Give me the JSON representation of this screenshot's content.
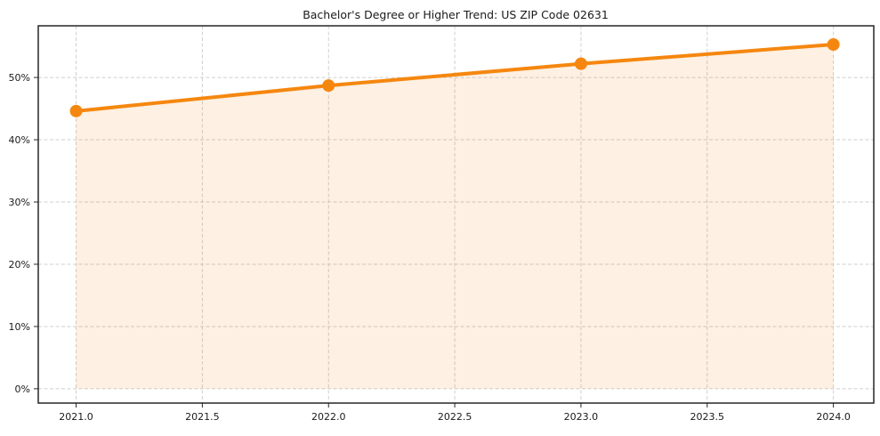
{
  "page": {
    "background": "#ffffff"
  },
  "chart_data": {
    "type": "line",
    "title": "Bachelor's Degree or Higher Trend: US ZIP Code 02631",
    "x": [
      2021.0,
      2022.0,
      2023.0,
      2024.0
    ],
    "values": [
      44.6,
      48.7,
      52.2,
      55.3
    ],
    "unit": "%",
    "xlabel": "",
    "ylabel": "",
    "xlim": [
      2020.85,
      2024.16
    ],
    "ylim": [
      -2.3,
      58.3
    ],
    "xticks": {
      "values": [
        2021.0,
        2021.5,
        2022.0,
        2022.5,
        2023.0,
        2023.5,
        2024.0
      ],
      "labels": [
        "2021.0",
        "2021.5",
        "2022.0",
        "2022.5",
        "2023.0",
        "2023.5",
        "2024.0"
      ]
    },
    "yticks": {
      "values": [
        0,
        10,
        20,
        30,
        40,
        50
      ],
      "labels": [
        "0%",
        "10%",
        "20%",
        "30%",
        "40%",
        "50%"
      ]
    },
    "grid": {
      "visible": true,
      "style": "dashed",
      "color": "#cfcfcf"
    },
    "legend": {
      "visible": false
    },
    "area_fill": {
      "to_value": 0,
      "opacity": 0.12
    },
    "markers": {
      "shape": "circle"
    },
    "colors": {
      "line": "#f5870f",
      "marker": "#f5870f",
      "fill": "#f5870f",
      "spine": "#262626",
      "tick_text": "#1a1a1a",
      "title_text": "#111111"
    }
  }
}
